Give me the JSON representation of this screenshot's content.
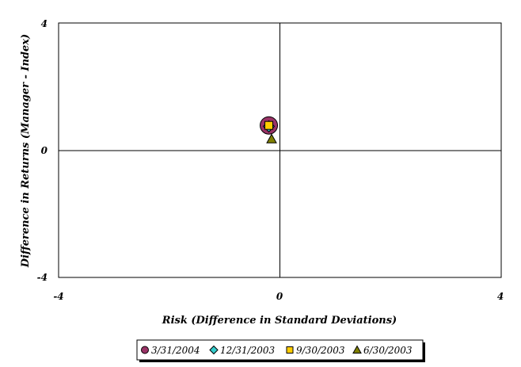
{
  "chart_data": {
    "type": "scatter",
    "title": "",
    "xlabel": "Risk (Difference in Standard Deviations)",
    "ylabel": "Difference in Returns (Manager - Index)",
    "xlim": [
      -4,
      4
    ],
    "ylim": [
      -4,
      4
    ],
    "x_ticks": [
      "-4",
      "0",
      "4"
    ],
    "y_ticks": [
      "4",
      "0",
      "-4"
    ],
    "grid": false,
    "legend_position": "bottom",
    "series": [
      {
        "name": "3/31/2004",
        "marker": "circle",
        "color": "#993366",
        "points": [
          {
            "x": -0.2,
            "y": 0.78
          }
        ]
      },
      {
        "name": "12/31/2003",
        "marker": "diamond",
        "color": "#33CCCC",
        "points": [
          {
            "x": -0.2,
            "y": 0.75
          }
        ]
      },
      {
        "name": "9/30/2003",
        "marker": "square",
        "color": "#FFCC00",
        "points": [
          {
            "x": -0.2,
            "y": 0.78
          }
        ]
      },
      {
        "name": "6/30/2003",
        "marker": "triangle",
        "color": "#808000",
        "points": [
          {
            "x": -0.15,
            "y": 0.35
          }
        ]
      }
    ]
  }
}
